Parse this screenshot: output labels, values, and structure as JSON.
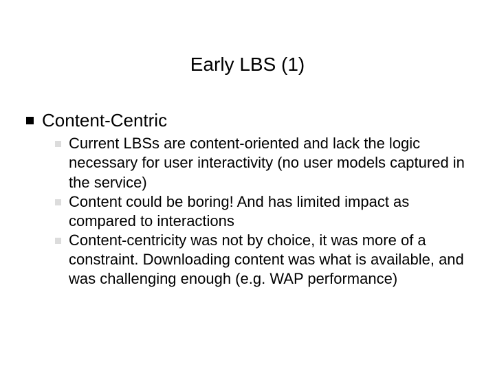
{
  "slide": {
    "title": "Early LBS (1)",
    "bullets": [
      {
        "text": "Content-Centric",
        "sub": [
          "Current LBSs are content-oriented and lack the logic necessary for user interactivity (no user models captured in the service)",
          "Content could be boring! And has limited impact as compared to interactions",
          "Content-centricity was not by choice, it was more of a constraint. Downloading content was what is available, and was challenging enough (e.g. WAP performance)"
        ]
      }
    ]
  },
  "style": {
    "background_color": "#ffffff",
    "text_color": "#000000",
    "title_fontsize": 28,
    "lvl1_fontsize": 26,
    "lvl2_fontsize": 22,
    "lvl1_bullet_color": "#000000",
    "lvl2_bullet_color": "#dcdcdc",
    "font_family": "Verdana"
  }
}
